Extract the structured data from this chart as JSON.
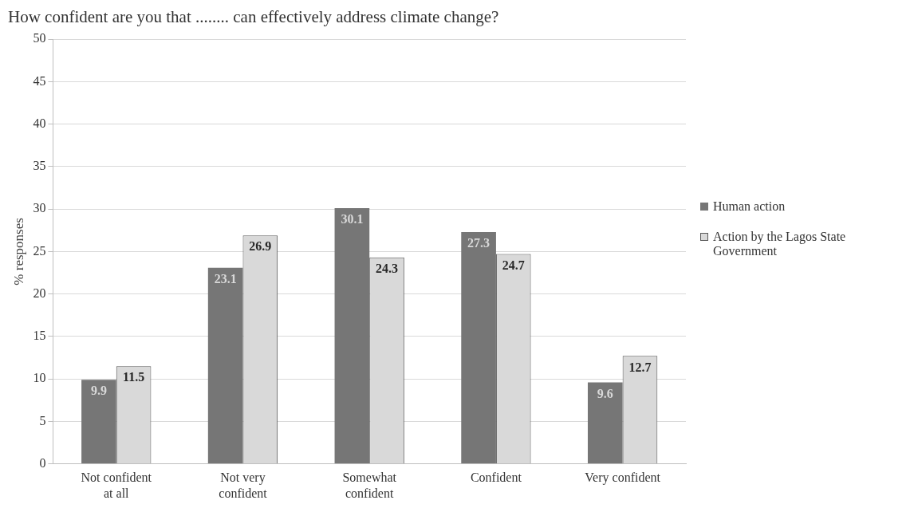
{
  "chart_data": {
    "type": "bar",
    "title": "How confident are you that ........ can effectively address climate change?",
    "ylabel": "% responses",
    "categories": [
      "Not confident at all",
      "Not very confident",
      "Somewhat confident",
      "Confident",
      "Very confident"
    ],
    "series": [
      {
        "name": "Human action",
        "color": "#767676",
        "values": [
          9.9,
          23.1,
          30.1,
          27.3,
          9.6
        ]
      },
      {
        "name": "Action by the Lagos State Government",
        "color": "#d9d9d9",
        "values": [
          11.5,
          26.9,
          24.3,
          24.7,
          12.7
        ]
      }
    ],
    "ylim": [
      0,
      50
    ],
    "yticks": [
      0,
      5,
      10,
      15,
      20,
      25,
      30,
      35,
      40,
      45,
      50
    ],
    "grid": "y",
    "legend": "right",
    "data_labels": true
  }
}
